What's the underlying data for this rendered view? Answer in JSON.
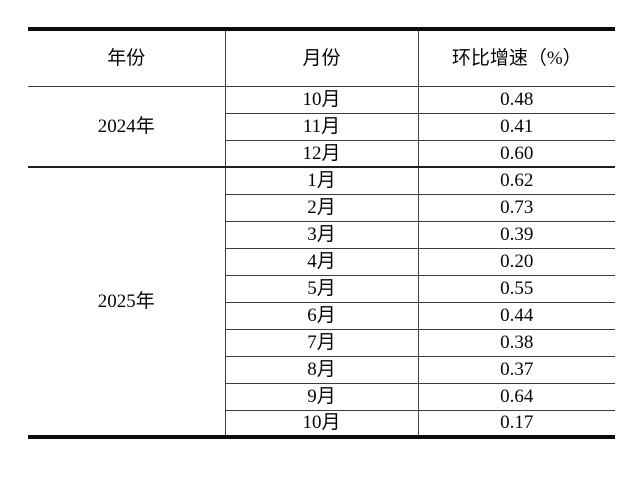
{
  "table": {
    "columns": [
      "年份",
      "月份",
      "环比增速（%）"
    ],
    "groups": [
      {
        "year": "2024年",
        "rows": [
          {
            "month": "10月",
            "value": "0.48"
          },
          {
            "month": "11月",
            "value": "0.41"
          },
          {
            "month": "12月",
            "value": "0.60"
          }
        ]
      },
      {
        "year": "2025年",
        "rows": [
          {
            "month": "1月",
            "value": "0.62"
          },
          {
            "month": "2月",
            "value": "0.73"
          },
          {
            "month": "3月",
            "value": "0.39"
          },
          {
            "month": "4月",
            "value": "0.20"
          },
          {
            "month": "5月",
            "value": "0.55"
          },
          {
            "month": "6月",
            "value": "0.44"
          },
          {
            "month": "7月",
            "value": "0.38"
          },
          {
            "month": "8月",
            "value": "0.37"
          },
          {
            "month": "9月",
            "value": "0.64"
          },
          {
            "month": "10月",
            "value": "0.17"
          }
        ]
      }
    ],
    "colors": {
      "text": "#050505",
      "heavy_border": "#0b0b0b",
      "light_border": "#3d3d3d",
      "background": "#ffffff"
    }
  },
  "chart_data": {
    "type": "table",
    "columns": [
      "年份",
      "月份",
      "环比增速（%）"
    ],
    "rows": [
      [
        "2024年",
        "10月",
        0.48
      ],
      [
        "2024年",
        "11月",
        0.41
      ],
      [
        "2024年",
        "12月",
        0.6
      ],
      [
        "2025年",
        "1月",
        0.62
      ],
      [
        "2025年",
        "2月",
        0.73
      ],
      [
        "2025年",
        "3月",
        0.39
      ],
      [
        "2025年",
        "4月",
        0.2
      ],
      [
        "2025年",
        "5月",
        0.55
      ],
      [
        "2025年",
        "6月",
        0.44
      ],
      [
        "2025年",
        "7月",
        0.38
      ],
      [
        "2025年",
        "8月",
        0.37
      ],
      [
        "2025年",
        "9月",
        0.64
      ],
      [
        "2025年",
        "10月",
        0.17
      ]
    ]
  }
}
